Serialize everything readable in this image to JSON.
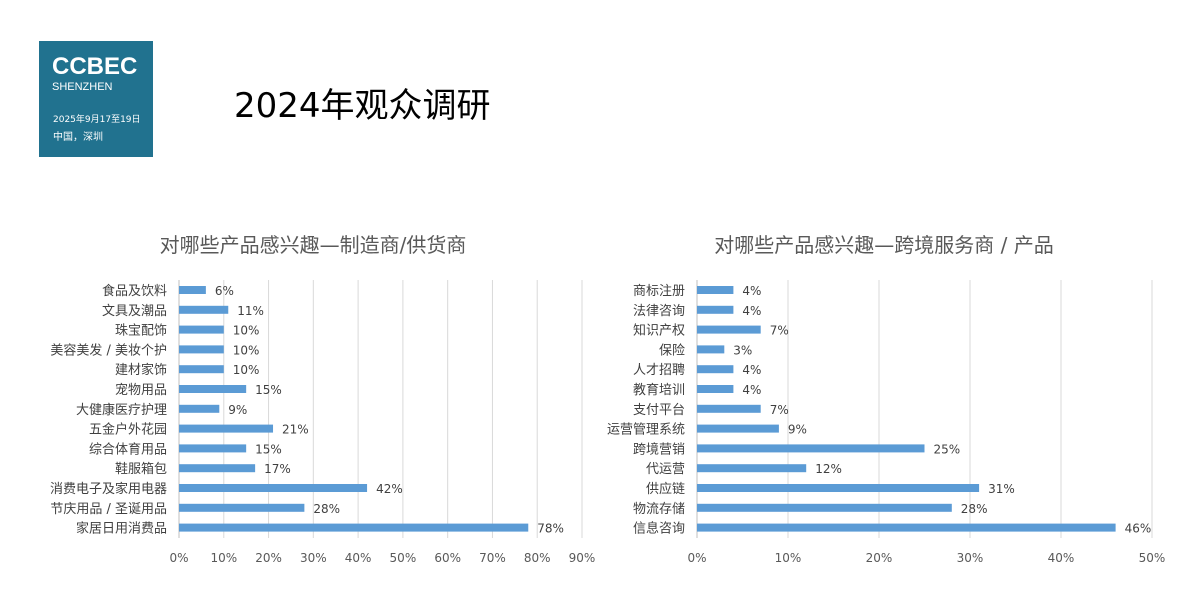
{
  "logo": {
    "brand": "CCBEC",
    "city": "SHENZHEN",
    "date": "2025年9月17至19日",
    "place": "中国，深圳"
  },
  "page_title": "2024年观众调研",
  "chart_data": [
    {
      "type": "bar",
      "orientation": "horizontal",
      "title": "对哪些产品感兴趣—制造商/供货商",
      "categories": [
        "食品及饮料",
        "文具及潮品",
        "珠宝配饰",
        "美容美发 / 美妆个护",
        "建材家饰",
        "宠物用品",
        "大健康医疗护理",
        "五金户外花园",
        "综合体育用品",
        "鞋服箱包",
        "消费电子及家用电器",
        "节庆用品 / 圣诞用品",
        "家居日用消费品"
      ],
      "values": [
        6,
        11,
        10,
        10,
        10,
        15,
        9,
        21,
        15,
        17,
        42,
        28,
        78
      ],
      "xlim": [
        0,
        90
      ],
      "xticks": [
        0,
        10,
        20,
        30,
        40,
        50,
        60,
        70,
        80,
        90
      ],
      "unit": "%",
      "grid": true,
      "color": "#5b9bd5"
    },
    {
      "type": "bar",
      "orientation": "horizontal",
      "title": "对哪些产品感兴趣—跨境服务商 / 产品",
      "categories": [
        "商标注册",
        "法律咨询",
        "知识产权",
        "保险",
        "人才招聘",
        "教育培训",
        "支付平台",
        "运营管理系统",
        "跨境营销",
        "代运营",
        "供应链",
        "物流存储",
        "信息咨询"
      ],
      "values": [
        4,
        4,
        7,
        3,
        4,
        4,
        7,
        9,
        25,
        12,
        31,
        28,
        46
      ],
      "xlim": [
        0,
        50
      ],
      "xticks": [
        0,
        10,
        20,
        30,
        40,
        50
      ],
      "unit": "%",
      "grid": true,
      "color": "#5b9bd5"
    }
  ]
}
